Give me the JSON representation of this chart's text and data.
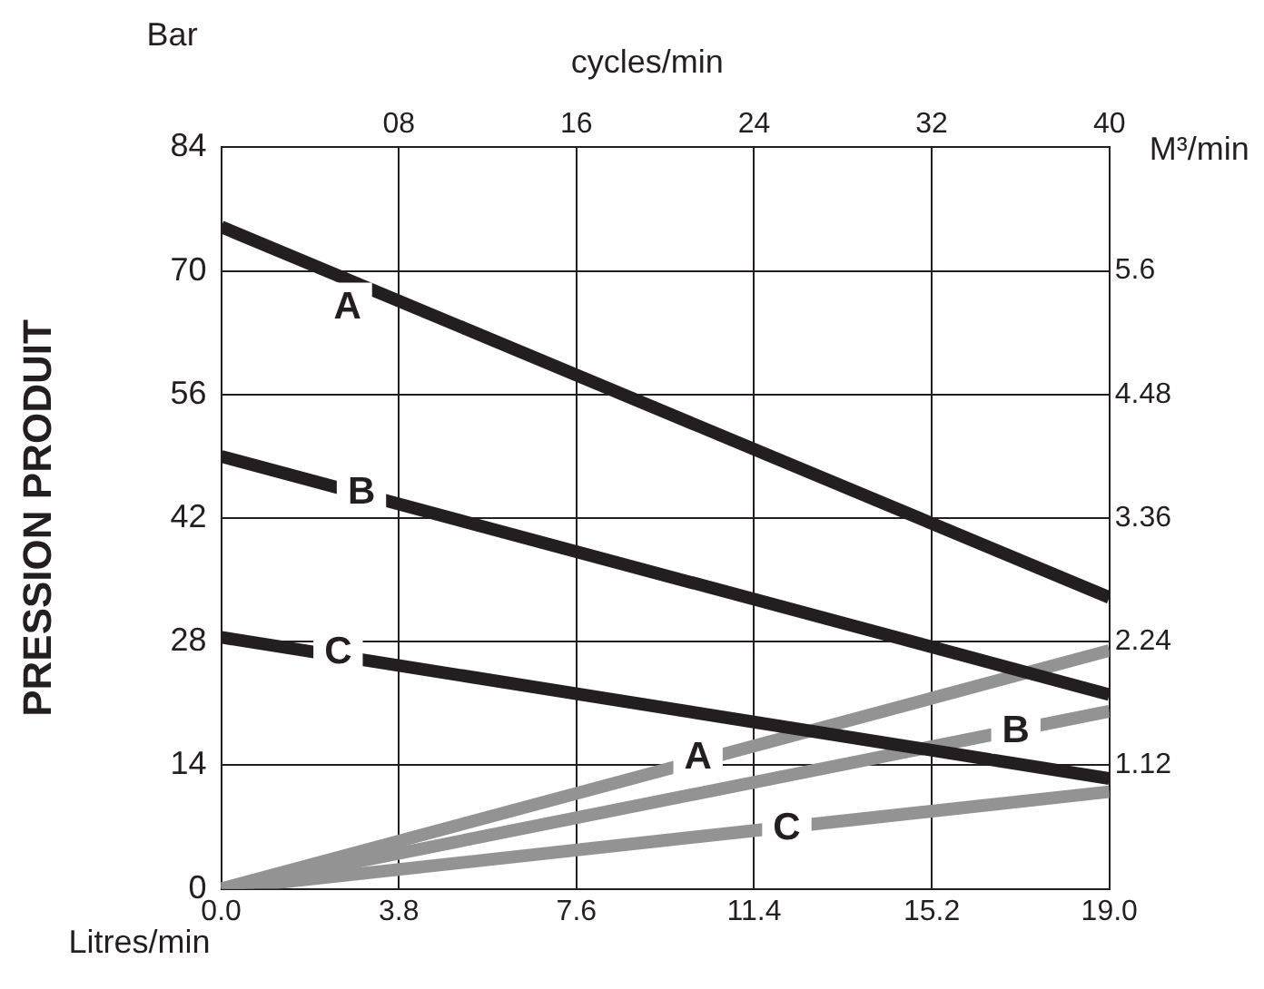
{
  "chart_data": {
    "type": "line",
    "ylabel": "PRESSION PRODUIT",
    "xlabel": "Litres/min",
    "x2label": "cycles/min",
    "y2label": "M³/min",
    "annotations": [
      "Bar",
      {
        "text": "A",
        "x": 2.7,
        "y": 66
      },
      {
        "text": "B",
        "x": 3,
        "y": 45
      },
      {
        "text": "C",
        "x": 2.5,
        "y": 27
      },
      {
        "text": "A",
        "x": 10.2,
        "y": 15
      },
      {
        "text": "B",
        "x": 17,
        "y": 18
      },
      {
        "text": "C",
        "x": 12.1,
        "y": 7
      }
    ],
    "x": [
      0,
      19
    ],
    "series": [
      {
        "color": "#231f20",
        "values": [
          75,
          33
        ]
      },
      {
        "color": "#231f20",
        "values": [
          49,
          22
        ]
      },
      {
        "color": "#231f20",
        "values": [
          28.5,
          12.5
        ]
      },
      {
        "color": "#939393",
        "axis": "y2",
        "values": [
          0,
          2.16
        ]
      },
      {
        "color": "#939393",
        "axis": "y2",
        "values": [
          0,
          1.61
        ]
      },
      {
        "color": "#939393",
        "axis": "y2",
        "values": [
          0,
          0.88
        ]
      }
    ],
    "xlim": [
      0,
      19
    ],
    "xticks": [
      {
        "value": 0,
        "label": "0.0"
      },
      3.8,
      7.6,
      11.4,
      15.2,
      {
        "value": 19,
        "label": "19.0"
      }
    ],
    "x2lim": [
      0,
      40
    ],
    "x2ticks": [
      {
        "value": 8,
        "label": "08"
      },
      16,
      24,
      32,
      40
    ],
    "ylim": [
      0,
      84
    ],
    "yticks": [
      0,
      14,
      28,
      42,
      56,
      70,
      84
    ],
    "y2lim": [
      0,
      6.72
    ],
    "y2ticks": [
      1.12,
      2.24,
      3.36,
      4.48,
      5.6
    ],
    "grid": true,
    "legend": false
  }
}
